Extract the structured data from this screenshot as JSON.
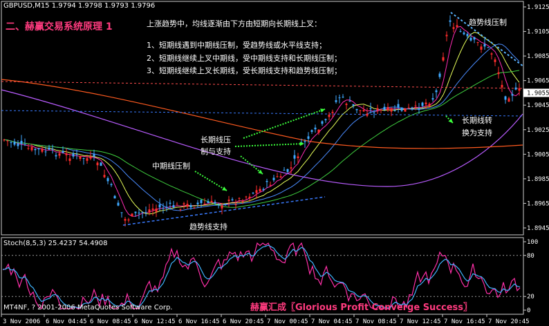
{
  "colors": {
    "background": "#000000",
    "bull": "#ff2d2d",
    "bear": "#3fa9ff",
    "ma_fast": "#ff2bb3",
    "ma_yellow": "#e8ff5a",
    "ma_blue": "#4a8cff",
    "ma_green": "#3fcf3f",
    "ma_purple": "#b95cff",
    "ma_orange": "#ff5a1f",
    "stoch_main": "#ff2fa8",
    "stoch_signal": "#3fb5ff",
    "annotation_green": "#3cff3c",
    "trendline": "#3a7bff"
  },
  "header": {
    "symbol": "GBPUSD,M15  1.9794 1.9798 1.9793 1.9796"
  },
  "annotations": {
    "title": "二、赫赢交易系统原理 1",
    "intro": "上涨趋势中，均线逐渐由下方由短期向长期线上叉：",
    "points": [
      "1、短期线遇到中期线压制，受趋势线或水平线支持；",
      "2、短期线继续上叉中期线，受中期线支持和长期线压制；",
      "3、短期线继续上叉长期线，受长期线支持和趋势线压制；"
    ],
    "trend_pressure": "趋势线压制",
    "long_line_pressure_1": "长期线压",
    "long_line_pressure_2": "制与支持",
    "mid_pressure": "中期线压制",
    "trend_support": "趋势线支持",
    "long_turn_1": "长期线转",
    "long_turn_2": "换为支持"
  },
  "price_axis": [
    "1.9125",
    "1.9105",
    "1.9085",
    "1.9065",
    "1.9045",
    "1.9025",
    "1.9005",
    "1.8985",
    "1.8965",
    "1.8945"
  ],
  "current_price": "1.9055",
  "stochastic": {
    "label": "Stoch(8,5,3) 25.4237 54.4908",
    "axis": [
      "100",
      "80",
      "20",
      "0"
    ]
  },
  "time_axis": [
    "3 Nov 2006",
    "6 Nov 04:45",
    "6 Nov 08:45",
    "6 Nov 12:45",
    "6 Nov 16:45",
    "6 Nov 20:45",
    "7 Nov 00:45",
    "7 Nov 04:45",
    "7 Nov 08:45",
    "7 Nov 12:45",
    "7 Nov 16:45",
    "7 Nov 20:45"
  ],
  "footer": {
    "copyright": "MT4NF, ? 2001-2006 MetaQuotes Software Corp.",
    "watermark": "赫赢汇成〖Glorious Profit Converge Success〗"
  }
}
